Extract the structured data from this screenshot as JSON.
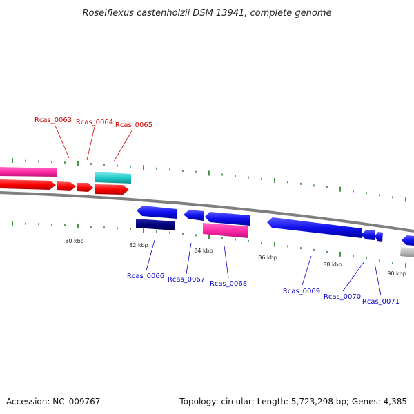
{
  "title": "Roseiflexus castenholzii DSM 13941, complete genome",
  "footer": {
    "accession": "Accession: NC_009767",
    "summary": "Topology: circular; Length: 5,723,298 bp; Genes: 4,385"
  },
  "scale_labels": [
    "80 kbp",
    "82 kbp",
    "84 kbp",
    "86 kbp",
    "88 kbp",
    "90 kbp"
  ],
  "colors": {
    "backbone": "#888888",
    "tick": "#1a7a1a",
    "forward_label": "#cc0000",
    "reverse_label": "#0000cc",
    "red_gene": "#ff0000",
    "pink_gene": "#ff2aa8",
    "cyan_gene": "#22cccc",
    "blue_gene": "#1010ee",
    "navy_gene": "#000080",
    "gray_gene": "#bbbbbb"
  },
  "gene_labels": {
    "forward": [
      "Rcas_0063",
      "Rcas_0064",
      "Rcas_0065"
    ],
    "reverse": [
      "Rcas_0066",
      "Rcas_0067",
      "Rcas_0068",
      "Rcas_0069",
      "Rcas_0070",
      "Rcas_0071"
    ]
  }
}
